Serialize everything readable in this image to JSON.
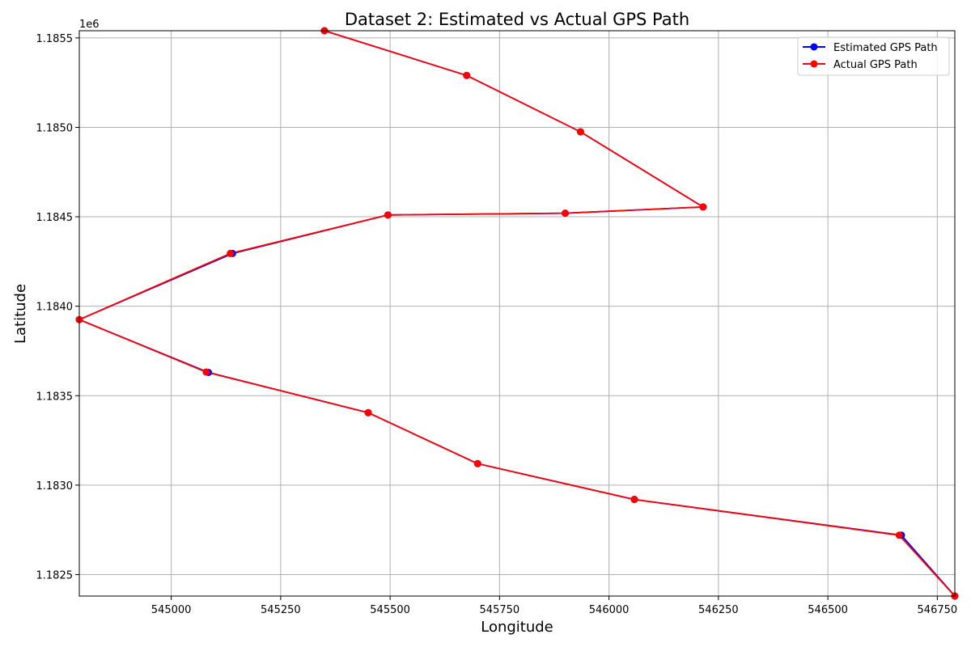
{
  "chart_data": {
    "type": "line",
    "title": "Dataset 2: Estimated vs Actual GPS Path",
    "xlabel": "Longitude",
    "ylabel": "Latitude",
    "y_offset_label": "1e6",
    "xlim": [
      544790,
      546790
    ],
    "ylim": [
      1182380,
      1185540
    ],
    "xticks": [
      545000,
      545250,
      545500,
      545750,
      546000,
      546250,
      546500,
      546750
    ],
    "xtick_labels": [
      "545000",
      "545250",
      "545500",
      "545750",
      "546000",
      "546250",
      "546500",
      "546750"
    ],
    "yticks": [
      1182500,
      1183000,
      1183500,
      1184000,
      1184500,
      1185000,
      1185500
    ],
    "ytick_labels": [
      "1.1825",
      "1.1830",
      "1.1835",
      "1.1840",
      "1.1845",
      "1.1850",
      "1.1855"
    ],
    "grid": true,
    "legend_position": "top-right",
    "series": [
      {
        "name": "Estimated GPS Path",
        "color": "#0000ff",
        "x": [
          545350,
          545675,
          545935,
          546215,
          545900,
          545495,
          545140,
          544790,
          545085,
          545450,
          545700,
          546058,
          546668,
          546790
        ],
        "y": [
          1185540,
          1185290,
          1184975,
          1184555,
          1184520,
          1184510,
          1184295,
          1183925,
          1183630,
          1183405,
          1183120,
          1182920,
          1182720,
          1182380
        ]
      },
      {
        "name": "Actual GPS Path",
        "color": "#ff0000",
        "x": [
          545350,
          545675,
          545935,
          546215,
          545900,
          545495,
          545135,
          544790,
          545080,
          545450,
          545700,
          546058,
          546663,
          546790
        ],
        "y": [
          1185540,
          1185290,
          1184975,
          1184555,
          1184520,
          1184510,
          1184295,
          1183925,
          1183632,
          1183405,
          1183120,
          1182920,
          1182720,
          1182380
        ]
      }
    ]
  }
}
